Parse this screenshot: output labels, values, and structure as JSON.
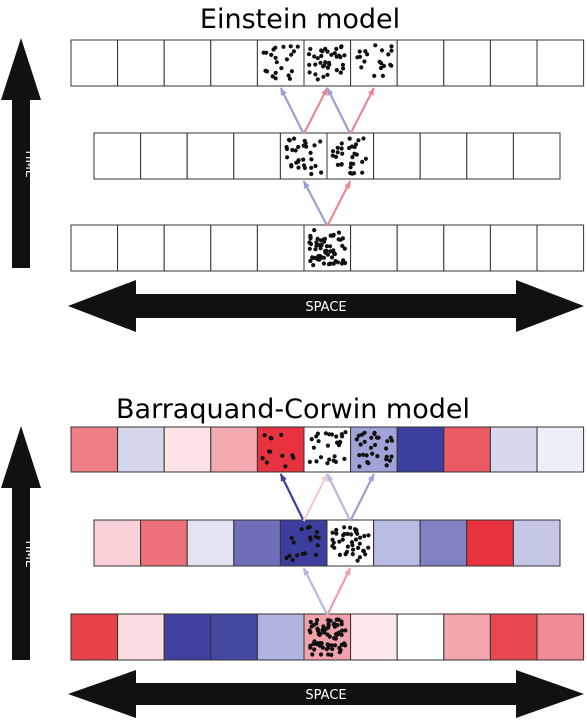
{
  "panels": [
    {
      "title": "Einstein model",
      "time_label": "TIME",
      "space_label": "SPACE",
      "rows": [
        {
          "cells": 11,
          "particle_cells": [
            {
              "index": 4,
              "dots": 22
            },
            {
              "index": 5,
              "dots": 36
            },
            {
              "index": 6,
              "dots": 20
            }
          ],
          "colors": []
        },
        {
          "cells": 10,
          "particle_cells": [
            {
              "index": 4,
              "dots": 30
            },
            {
              "index": 5,
              "dots": 30
            }
          ],
          "colors": []
        },
        {
          "cells": 11,
          "particle_cells": [
            {
              "index": 5,
              "dots": 60
            }
          ],
          "colors": []
        }
      ],
      "arrows": [
        {
          "from_row": 2,
          "from_cell": 5,
          "to_row": 1,
          "to_cell": 4,
          "color": "#9aa0d4"
        },
        {
          "from_row": 2,
          "from_cell": 5,
          "to_row": 1,
          "to_cell": 5,
          "color": "#e88a98"
        },
        {
          "from_row": 1,
          "from_cell": 4,
          "to_row": 0,
          "to_cell": 4,
          "color": "#9aa0d4"
        },
        {
          "from_row": 1,
          "from_cell": 4,
          "to_row": 0,
          "to_cell": 5,
          "color": "#e88a98"
        },
        {
          "from_row": 1,
          "from_cell": 5,
          "to_row": 0,
          "to_cell": 5,
          "color": "#9aa0d4"
        },
        {
          "from_row": 1,
          "from_cell": 5,
          "to_row": 0,
          "to_cell": 6,
          "color": "#e88a98"
        }
      ]
    },
    {
      "title": "Barraquand-Corwin model",
      "time_label": "TIME",
      "space_label": "SPACE",
      "rows": [
        {
          "cells": 11,
          "particle_cells": [
            {
              "index": 4,
              "dots": 12
            },
            {
              "index": 5,
              "dots": 26
            },
            {
              "index": 6,
              "dots": 30
            }
          ],
          "colors": [
            "#ee7f87",
            "#d4d6ec",
            "#fbe3e6",
            "#f5a9b1",
            "#e8323f",
            "#ffffff",
            "#9fa3d8",
            "#3c3f9e",
            "#ea5a63",
            "#d8d9ef",
            "#eceef8"
          ]
        },
        {
          "cells": 10,
          "particle_cells": [
            {
              "index": 4,
              "dots": 18
            },
            {
              "index": 5,
              "dots": 40
            }
          ],
          "colors": [
            "#f9d0d6",
            "#ee717b",
            "#e2e3f3",
            "#6e6fb8",
            "#3b3e9c",
            "#ffffff",
            "#b8bbe2",
            "#8082c4",
            "#e8323f",
            "#c4c6e6"
          ]
        },
        {
          "cells": 11,
          "particle_cells": [
            {
              "index": 5,
              "dots": 70
            }
          ],
          "colors": [
            "#e8424a",
            "#fbdde2",
            "#3f409f",
            "#4447a2",
            "#b1b4de",
            "#f2a2ab",
            "#fde8ec",
            "#ffffff",
            "#f4a6ae",
            "#e84750",
            "#f28c94"
          ]
        }
      ],
      "arrows": [
        {
          "from_row": 2,
          "from_cell": 5,
          "to_row": 1,
          "to_cell": 4,
          "color": "#b5b8e0"
        },
        {
          "from_row": 2,
          "from_cell": 5,
          "to_row": 1,
          "to_cell": 5,
          "color": "#eea0aa"
        },
        {
          "from_row": 1,
          "from_cell": 4,
          "to_row": 0,
          "to_cell": 4,
          "color": "#3c3f9e"
        },
        {
          "from_row": 1,
          "from_cell": 4,
          "to_row": 0,
          "to_cell": 5,
          "color": "#f7c9cf"
        },
        {
          "from_row": 1,
          "from_cell": 5,
          "to_row": 0,
          "to_cell": 5,
          "color": "#b5b8e0"
        },
        {
          "from_row": 1,
          "from_cell": 5,
          "to_row": 0,
          "to_cell": 6,
          "color": "#9aa0d4"
        }
      ]
    }
  ]
}
